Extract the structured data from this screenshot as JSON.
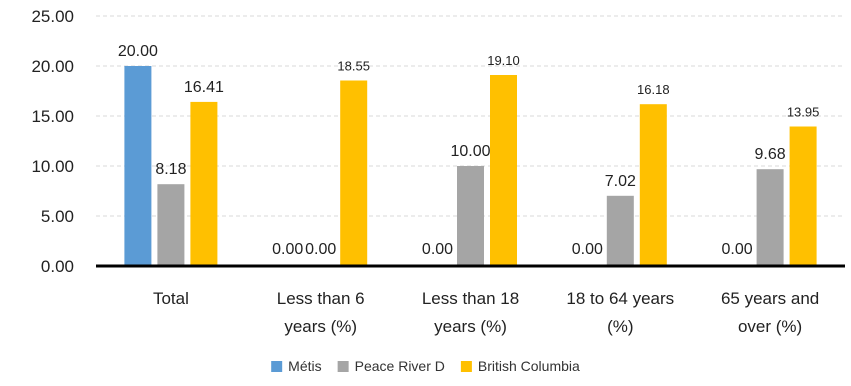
{
  "chart_data": {
    "type": "bar",
    "title": "",
    "xlabel": "",
    "ylabel": "",
    "ylim": [
      0,
      25
    ],
    "yticks": [
      "0.00",
      "5.00",
      "10.00",
      "15.00",
      "20.00",
      "25.00"
    ],
    "grid": "horizontal-dashed",
    "legend_position": "bottom",
    "categories": [
      [
        "Total"
      ],
      [
        "Less than 6",
        "years (%)"
      ],
      [
        "Less than 18",
        "years (%)"
      ],
      [
        "18 to 64 years",
        "(%)"
      ],
      [
        "65 years and",
        "over (%)"
      ]
    ],
    "series": [
      {
        "name": "Métis",
        "color": "#5B9BD5",
        "values": [
          20.0,
          0.0,
          0.0,
          0.0,
          0.0
        ],
        "labels": [
          "20.00",
          "0.00",
          "0.00",
          "0.00",
          "0.00"
        ]
      },
      {
        "name": "Peace River D",
        "color": "#A5A5A5",
        "values": [
          8.18,
          0.0,
          10.0,
          7.02,
          9.68
        ],
        "labels": [
          "8.18",
          "0.00",
          "10.00",
          "7.02",
          "9.68"
        ]
      },
      {
        "name": "British Columbia",
        "color": "#FFC000",
        "values": [
          16.41,
          18.55,
          19.1,
          16.18,
          13.95
        ],
        "labels": [
          "16.41",
          "18.55",
          "19.10",
          "16.18",
          "13.95"
        ]
      }
    ]
  }
}
